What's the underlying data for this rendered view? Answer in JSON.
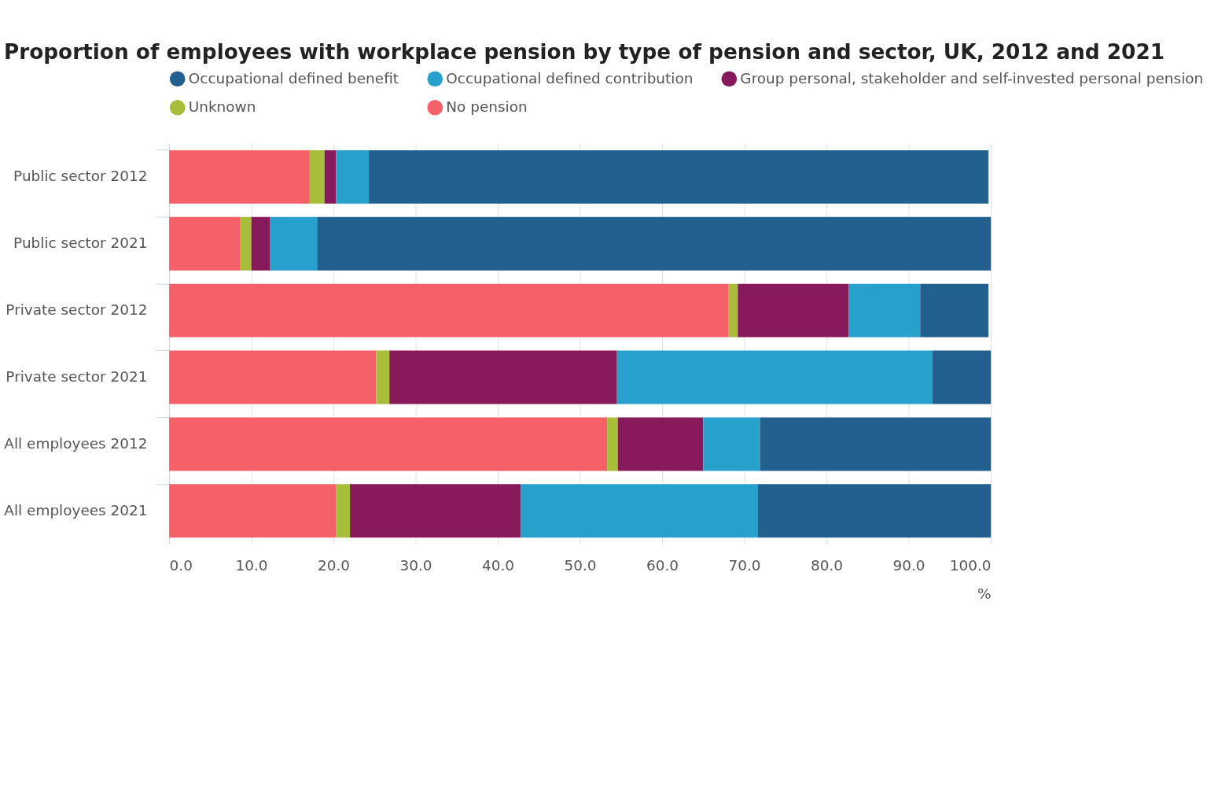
{
  "chart_data": {
    "type": "bar",
    "orientation": "horizontal",
    "stacked": true,
    "title": "Proportion of employees with workplace pension by type of pension and sector, UK, 2012 and 2021",
    "xlabel": "%",
    "categories": [
      "Public sector 2012",
      "Public sector 2021",
      "Private sector 2012",
      "Private sector 2021",
      "All employees 2012",
      "All employees 2021"
    ],
    "series": [
      {
        "name": "No pension",
        "color": "#f66068",
        "values": [
          17.1,
          8.6,
          68.1,
          25.2,
          53.3,
          20.3
        ]
      },
      {
        "name": "Unknown",
        "color": "#a8bd3a",
        "values": [
          1.8,
          1.4,
          1.1,
          1.6,
          1.3,
          1.7
        ]
      },
      {
        "name": "Group personal, stakeholder and self-invested personal pension",
        "color": "#871a5b",
        "values": [
          1.4,
          2.3,
          13.5,
          27.7,
          10.4,
          20.8
        ]
      },
      {
        "name": "Occupational defined contribution",
        "color": "#27a0cc",
        "values": [
          4.0,
          5.7,
          8.7,
          38.4,
          6.9,
          28.8
        ]
      },
      {
        "name": "Occupational defined benefit",
        "color": "#22608f",
        "values": [
          75.4,
          82.0,
          8.3,
          7.1,
          28.1,
          28.4
        ]
      }
    ],
    "xlim": [
      0,
      100
    ],
    "xticks": [
      {
        "value": 0,
        "label": "0.0"
      },
      {
        "value": 10,
        "label": "10.0"
      },
      {
        "value": 20,
        "label": "20.0"
      },
      {
        "value": 30,
        "label": "30.0"
      },
      {
        "value": 40,
        "label": "40.0"
      },
      {
        "value": 50,
        "label": "50.0"
      },
      {
        "value": 60,
        "label": "60.0"
      },
      {
        "value": 70,
        "label": "70.0"
      },
      {
        "value": 80,
        "label": "80.0"
      },
      {
        "value": 90,
        "label": "90.0"
      },
      {
        "value": 100,
        "label": "100.0"
      }
    ],
    "grid": "x",
    "legend": "top"
  }
}
